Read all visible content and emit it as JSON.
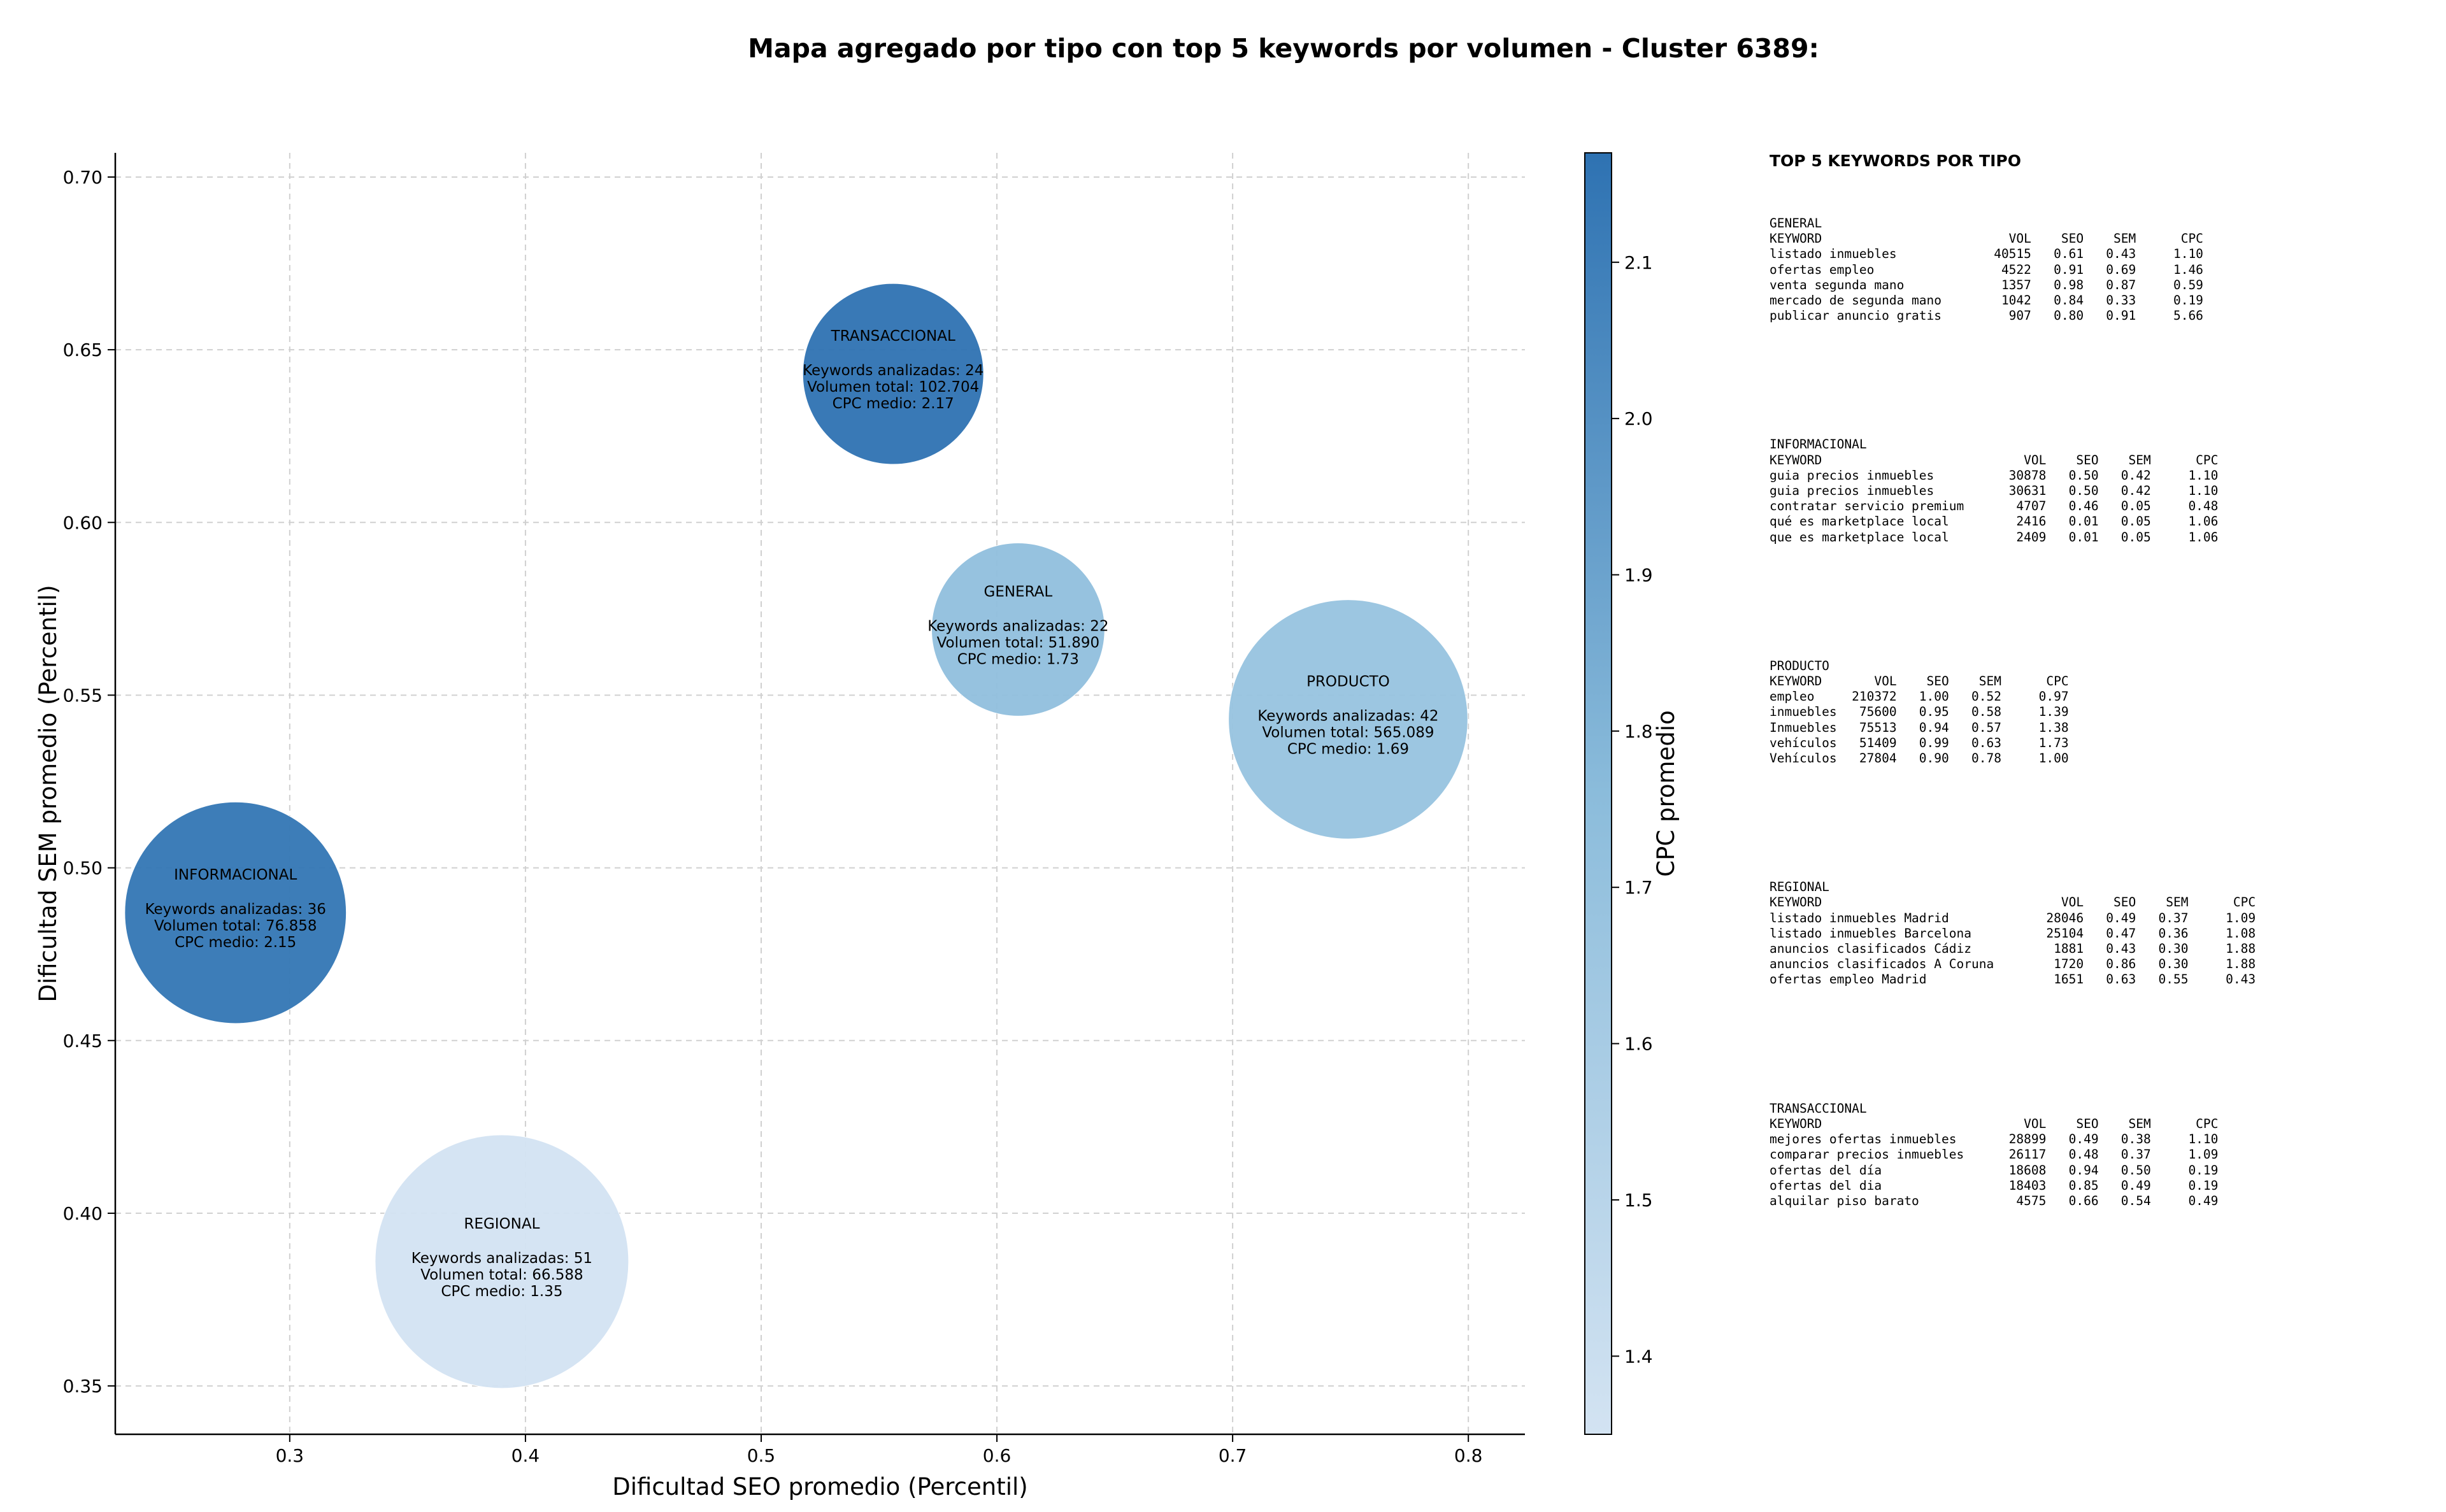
{
  "title": "Mapa agregado por tipo con top 5 keywords por volumen - Cluster 6389:",
  "chart_data": {
    "type": "scatter",
    "title": "Mapa agregado por tipo con top 5 keywords por volumen - Cluster 6389:",
    "xlabel": "Dificultad SEO promedio (Percentil)",
    "ylabel": "Dificultad SEM promedio (Percentil)",
    "xlim": [
      0.226,
      0.824
    ],
    "ylim": [
      0.336,
      0.707
    ],
    "xticks": [
      "0.3",
      "0.4",
      "0.5",
      "0.6",
      "0.7",
      "0.8"
    ],
    "yticks": [
      "0.35",
      "0.40",
      "0.45",
      "0.50",
      "0.55",
      "0.60",
      "0.65",
      "0.70"
    ],
    "grid": true,
    "colorbar": {
      "label": "CPC promedio",
      "range": [
        1.35,
        2.17
      ],
      "ticks": [
        "1.4",
        "1.5",
        "1.6",
        "1.7",
        "1.8",
        "1.9",
        "2.0",
        "2.1"
      ],
      "color_low": "#d3e3f2",
      "color_high": "#2e72b2"
    },
    "points": [
      {
        "tipo": "TRANSACCIONAL",
        "x": 0.556,
        "y": 0.643,
        "keywords": 24,
        "volumen": "102.704",
        "cpc": 2.17,
        "lines": [
          "Keywords analizadas: 24",
          "Volumen total: 102.704",
          "CPC medio: 2.17"
        ]
      },
      {
        "tipo": "GENERAL",
        "x": 0.609,
        "y": 0.569,
        "keywords": 22,
        "volumen": "51.890",
        "cpc": 1.73,
        "lines": [
          "Keywords analizadas: 22",
          "Volumen total: 51.890",
          "CPC medio: 1.73"
        ]
      },
      {
        "tipo": "PRODUCTO",
        "x": 0.749,
        "y": 0.543,
        "keywords": 42,
        "volumen": "565.089",
        "cpc": 1.69,
        "lines": [
          "Keywords analizadas: 42",
          "Volumen total: 565.089",
          "CPC medio: 1.69"
        ]
      },
      {
        "tipo": "INFORMACIONAL",
        "x": 0.277,
        "y": 0.487,
        "keywords": 36,
        "volumen": "76.858",
        "cpc": 2.15,
        "lines": [
          "Keywords analizadas: 36",
          "Volumen total: 76.858",
          "CPC medio: 2.15"
        ]
      },
      {
        "tipo": "REGIONAL",
        "x": 0.39,
        "y": 0.386,
        "keywords": 51,
        "volumen": "66.588",
        "cpc": 1.35,
        "lines": [
          "Keywords analizadas: 51",
          "Volumen total: 66.588",
          "CPC medio: 1.35"
        ]
      }
    ]
  },
  "panel": {
    "title": "TOP 5 KEYWORDS POR TIPO",
    "header": [
      "KEYWORD",
      "VOL",
      "SEO",
      "SEM",
      "CPC"
    ],
    "groups": [
      {
        "name": "GENERAL",
        "kw_width": 29,
        "rows": [
          [
            "listado inmuebles",
            "40515",
            "0.61",
            "0.43",
            "1.10"
          ],
          [
            "ofertas empleo",
            "4522",
            "0.91",
            "0.69",
            "1.46"
          ],
          [
            "venta segunda mano",
            "1357",
            "0.98",
            "0.87",
            "0.59"
          ],
          [
            "mercado de segunda mano",
            "1042",
            "0.84",
            "0.33",
            "0.19"
          ],
          [
            "publicar anuncio gratis",
            "907",
            "0.80",
            "0.91",
            "5.66"
          ]
        ]
      },
      {
        "name": "INFORMACIONAL",
        "kw_width": 31,
        "rows": [
          [
            "guia precios inmuebles",
            "30878",
            "0.50",
            "0.42",
            "1.10"
          ],
          [
            "guia precios inmuebles",
            "30631",
            "0.50",
            "0.42",
            "1.10"
          ],
          [
            "contratar servicio premium",
            "4707",
            "0.46",
            "0.05",
            "0.48"
          ],
          [
            "qué es marketplace local",
            "2416",
            "0.01",
            "0.05",
            "1.06"
          ],
          [
            "que es marketplace local",
            "2409",
            "0.01",
            "0.05",
            "1.06"
          ]
        ]
      },
      {
        "name": "PRODUCTO",
        "kw_width": 11,
        "rows": [
          [
            "empleo",
            "210372",
            "1.00",
            "0.52",
            "0.97"
          ],
          [
            "inmuebles",
            "75600",
            "0.95",
            "0.58",
            "1.39"
          ],
          [
            "Inmuebles",
            "75513",
            "0.94",
            "0.57",
            "1.38"
          ],
          [
            "vehículos",
            "51409",
            "0.99",
            "0.63",
            "1.73"
          ],
          [
            "Vehículos",
            "27804",
            "0.90",
            "0.78",
            "1.00"
          ]
        ]
      },
      {
        "name": "REGIONAL",
        "kw_width": 36,
        "rows": [
          [
            "listado inmuebles Madrid",
            "28046",
            "0.49",
            "0.37",
            "1.09"
          ],
          [
            "listado inmuebles Barcelona",
            "25104",
            "0.47",
            "0.36",
            "1.08"
          ],
          [
            "anuncios clasificados Cádiz",
            "1881",
            "0.43",
            "0.30",
            "1.88"
          ],
          [
            "anuncios clasificados A Coruna",
            "1720",
            "0.86",
            "0.30",
            "1.88"
          ],
          [
            "ofertas empleo Madrid",
            "1651",
            "0.63",
            "0.55",
            "0.43"
          ]
        ]
      },
      {
        "name": "TRANSACCIONAL",
        "kw_width": 31,
        "rows": [
          [
            "mejores ofertas inmuebles",
            "28899",
            "0.49",
            "0.38",
            "1.10"
          ],
          [
            "comparar precios inmuebles",
            "26117",
            "0.48",
            "0.37",
            "1.09"
          ],
          [
            "ofertas del día",
            "18608",
            "0.94",
            "0.50",
            "0.19"
          ],
          [
            "ofertas del dia",
            "18403",
            "0.85",
            "0.49",
            "0.19"
          ],
          [
            "alquilar piso barato",
            "4575",
            "0.66",
            "0.54",
            "0.49"
          ]
        ]
      }
    ]
  }
}
